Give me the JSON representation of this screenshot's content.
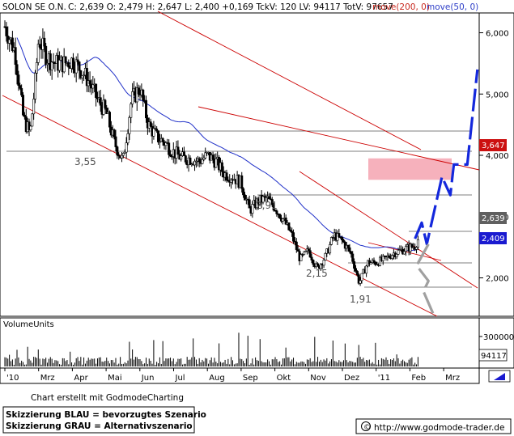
{
  "header": {
    "name": "SOLON SE O.N.",
    "quote": "C: 2,639 O: 2,479 H: 2,647 L: 2,400 +0,169 TckV: 120 LV: 94117 TotV: 97657",
    "ma200_label": "move(200, 0)",
    "ma50_label": "move(50, 0)"
  },
  "chart_data": {
    "type": "candlestick",
    "instrument": "SOLON SE O.N.",
    "ohlc_last": {
      "close": 2.639,
      "open": 2.479,
      "high": 2.647,
      "low": 2.4,
      "change": 0.169
    },
    "x_axis_labels": [
      "'10",
      "Mrz",
      "Apr",
      "Mai",
      "Jun",
      "Jul",
      "Aug",
      "Sep",
      "Okt",
      "Nov",
      "Dez",
      "'11",
      "Feb",
      "Mrz"
    ],
    "y_axis_ticks": [
      "2,000",
      "3,000",
      "4,000",
      "5,000",
      "6,000"
    ],
    "y_range": [
      1.45,
      6.5
    ],
    "price_series": {
      "month": [
        0,
        0.3,
        0.55,
        0.75,
        0.9,
        1.0,
        1.25,
        1.5,
        1.75,
        2.0,
        2.25,
        2.5,
        2.75,
        3.0,
        3.25,
        3.5,
        3.75,
        4.0,
        4.25,
        4.5,
        4.75,
        5.0,
        5.25,
        5.5,
        5.75,
        6.0,
        6.25,
        6.5,
        6.75,
        7.0,
        7.25,
        7.5,
        7.75,
        8.0,
        8.25,
        8.5,
        8.75,
        9.0,
        9.25,
        9.5,
        9.75,
        10.0,
        10.25,
        10.5,
        10.75,
        11.0,
        11.25,
        11.5,
        11.75,
        12.0,
        12.15,
        12.25
      ],
      "close": [
        6.1,
        5.7,
        4.6,
        4.35,
        5.2,
        5.9,
        5.6,
        5.5,
        5.5,
        5.55,
        5.4,
        5.2,
        4.9,
        4.7,
        4.2,
        3.9,
        4.9,
        5.1,
        4.5,
        4.3,
        4.2,
        4.05,
        3.95,
        3.95,
        3.9,
        4.0,
        3.9,
        3.7,
        3.65,
        3.55,
        3.1,
        3.25,
        3.3,
        3.15,
        2.95,
        2.7,
        2.3,
        2.45,
        2.15,
        2.35,
        2.7,
        2.6,
        2.4,
        1.92,
        2.25,
        2.25,
        2.3,
        2.4,
        2.45,
        2.5,
        2.52,
        2.639
      ]
    },
    "volume_axis_ticks": [
      "300000"
    ],
    "last_volume": "94117",
    "price_tags": [
      "3,647",
      "2,639",
      "2,409"
    ],
    "horizontal_levels": [
      "3,55",
      "2,91",
      "2,15",
      "1,91"
    ],
    "resistance_zone": [
      3.6,
      3.95
    ],
    "scenario_blue_preferred": [
      {
        "month": 12.15,
        "price": 2.639
      },
      {
        "month": 12.35,
        "price": 2.9
      },
      {
        "month": 12.5,
        "price": 2.55
      },
      {
        "month": 12.95,
        "price": 3.65
      },
      {
        "month": 13.2,
        "price": 3.35
      },
      {
        "month": 13.3,
        "price": 3.85
      },
      {
        "month": 13.7,
        "price": 3.85
      },
      {
        "month": 14.0,
        "price": 5.4
      }
    ],
    "scenario_grey_alternative": [
      {
        "month": 12.55,
        "price": 2.55
      },
      {
        "month": 12.2,
        "price": 2.2
      },
      {
        "month": 12.55,
        "price": 1.95
      },
      {
        "month": 12.4,
        "price": 1.78
      },
      {
        "month": 12.7,
        "price": 1.4
      }
    ],
    "panels": [
      "price",
      "VolumeUnits"
    ]
  },
  "volume_title": "VolumeUnits",
  "footer": {
    "credit": "Chart erstellt mit GodmodeCharting",
    "scenario_blue": "Skizzierung BLAU = bevorzugtes Szenario",
    "scenario_grey": "Skizzierung GRAU = Alternativszenario",
    "copyright_symbol": "©",
    "url": "http://www.godmode-trader.de"
  },
  "colors": {
    "blue_scenario": "#1428dc",
    "grey_scenario": "#a0a0a0",
    "trend_red": "#cc0000",
    "ma50": "#2030c8",
    "zone_pink": "#f4a3b0",
    "tag_red": "#cc1010",
    "tag_blue": "#1a1ad0",
    "tag_grey": "#606060"
  }
}
